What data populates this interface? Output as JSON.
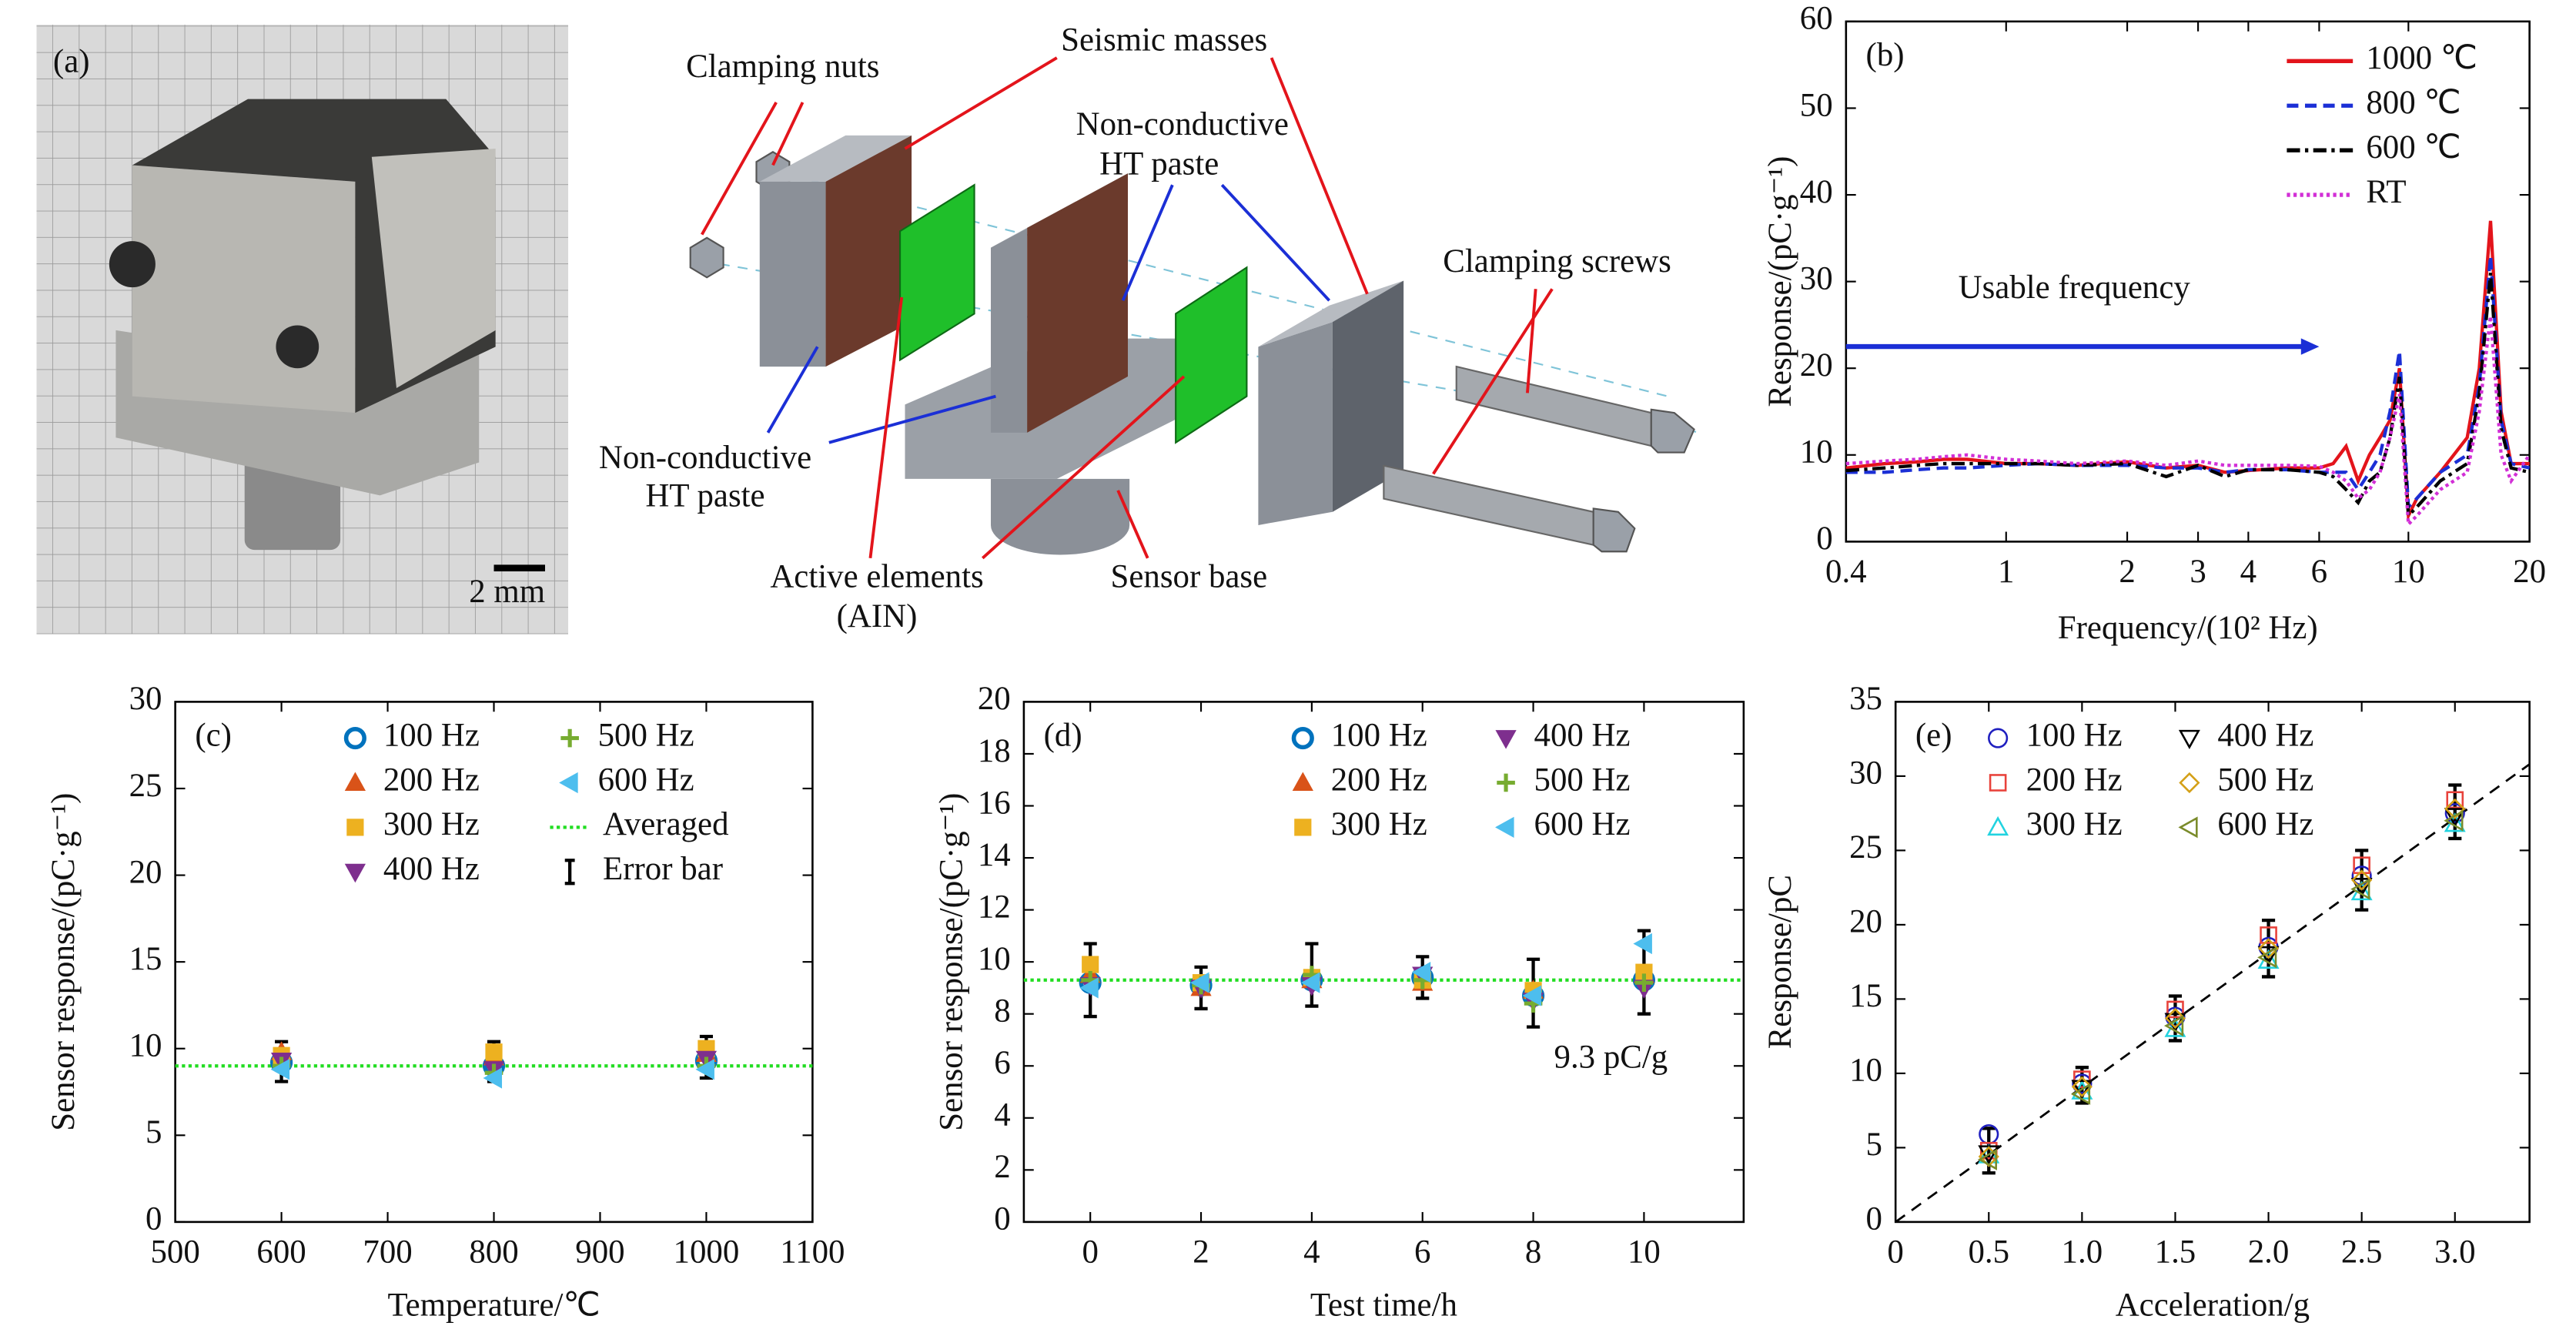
{
  "photo": {
    "label": "(a)",
    "scale_bar": "2 mm"
  },
  "diagram": {
    "clamping_nuts": "Clamping nuts",
    "seismic_masses": "Seismic masses",
    "paste_top": [
      "Non-conductive",
      "HT paste"
    ],
    "clamping_screws": "Clamping screws",
    "paste_left": [
      "Non-conductive",
      "HT paste"
    ],
    "active_elements": [
      "Active elements",
      "(AIN)"
    ],
    "sensor_base": "Sensor base"
  },
  "chart_data": [
    {
      "type": "line",
      "panel_label": "(b)",
      "xlabel": "Frequency/(10² Hz)",
      "ylabel": "Response/(pC·g⁻¹)",
      "xscale": "log",
      "xlim": [
        0.4,
        20
      ],
      "xticks": [
        0.4,
        1,
        2,
        3,
        4,
        6,
        10,
        20
      ],
      "ylim": [
        0,
        60
      ],
      "yticks": [
        0,
        10,
        20,
        30,
        40,
        50,
        60
      ],
      "legend": "upper right",
      "legend_ncol": 1,
      "x": [
        0.4,
        0.5,
        0.6,
        0.7,
        0.8,
        1,
        1.2,
        1.5,
        2,
        2.5,
        3,
        3.5,
        4,
        5,
        6,
        6.5,
        7,
        7.5,
        8,
        8.5,
        9,
        9.5,
        10,
        10.5,
        12,
        14,
        15,
        16,
        17,
        18,
        20
      ],
      "series": [
        {
          "name": "1000 ℃",
          "color": "#e3141b",
          "dash": "solid",
          "values": [
            8.5,
            9,
            9.2,
            9.5,
            9.5,
            9,
            9,
            8.8,
            9.2,
            8.5,
            8.8,
            8,
            8.2,
            8.5,
            8.5,
            9,
            11,
            7,
            10,
            12,
            14,
            20,
            3,
            5,
            8,
            12,
            20,
            37,
            15,
            9,
            9
          ]
        },
        {
          "name": "800 ℃",
          "color": "#1b2fd6",
          "dash": "dashed",
          "values": [
            8,
            8,
            8.3,
            8.5,
            8.5,
            8.8,
            9,
            8.8,
            8.8,
            8.5,
            8.5,
            8,
            8.3,
            8.3,
            8,
            8,
            8,
            6,
            8,
            10,
            15,
            22,
            4,
            5,
            8,
            10,
            18,
            33,
            14,
            9,
            8.5
          ]
        },
        {
          "name": "600 ℃",
          "color": "#000000",
          "dash": "dashdot",
          "values": [
            8.2,
            8.5,
            8.8,
            9,
            9,
            9,
            9,
            8.8,
            9,
            7.5,
            8.8,
            7.5,
            8.3,
            8.3,
            8,
            7.5,
            6,
            4.5,
            7,
            8,
            12,
            19,
            3,
            4,
            7,
            9,
            17,
            31,
            13,
            8.5,
            8
          ]
        },
        {
          "name": "RT",
          "color": "#d22fd6",
          "dash": "dotted",
          "values": [
            9,
            9.3,
            9.5,
            9.8,
            10,
            9.5,
            9.3,
            9,
            9.3,
            8.8,
            9.3,
            8.8,
            8.8,
            8.8,
            8.7,
            8,
            7,
            5,
            6,
            8,
            12,
            17,
            2,
            3,
            6,
            8,
            15,
            26,
            10,
            7,
            10
          ]
        }
      ],
      "arrow": {
        "text": "Usable frequency",
        "x": [
          0.4,
          6
        ],
        "y": 22.5,
        "color": "#1b2fd6"
      }
    },
    {
      "type": "scatter",
      "panel_label": "(c)",
      "xlabel": "Temperature/℃",
      "ylabel": "Sensor response/(pC·g⁻¹)",
      "xlim": [
        500,
        1100
      ],
      "xticks": [
        500,
        600,
        700,
        800,
        900,
        1000,
        1100
      ],
      "ylim": [
        0,
        30
      ],
      "yticks": [
        0,
        5,
        10,
        15,
        20,
        25,
        30
      ],
      "legend": "upper center",
      "legend_ncol": 2,
      "markers_filled": true,
      "x": [
        600,
        800,
        1000
      ],
      "series": [
        {
          "name": "100 Hz",
          "color": "#0072bd",
          "marker": "circle",
          "values": [
            9.2,
            9.0,
            9.3
          ]
        },
        {
          "name": "200 Hz",
          "color": "#d95319",
          "marker": "triangle-up",
          "values": [
            9.8,
            9.5,
            9.7
          ]
        },
        {
          "name": "300 Hz",
          "color": "#edb120",
          "marker": "square",
          "values": [
            9.6,
            9.8,
            10.0
          ]
        },
        {
          "name": "400 Hz",
          "color": "#7e2f8e",
          "marker": "triangle-down",
          "values": [
            9.3,
            8.8,
            9.4
          ]
        },
        {
          "name": "500 Hz",
          "color": "#77ac30",
          "marker": "plus",
          "values": [
            9.0,
            8.6,
            9.0
          ]
        },
        {
          "name": "600 Hz",
          "color": "#4dbeee",
          "marker": "triangle-left",
          "values": [
            8.8,
            8.3,
            8.8
          ]
        }
      ],
      "average": {
        "name": "Averaged",
        "value": 9,
        "color": "#22dd22"
      },
      "error_bar": {
        "name": "Error bar",
        "color": "#000000",
        "values": [
          9.25,
          9.25,
          9.5
        ],
        "errors": [
          1.15,
          1.15,
          1.2
        ]
      }
    },
    {
      "type": "scatter",
      "panel_label": "(d)",
      "xlabel": "Test time/h",
      "ylabel": "Sensor response/(pC·g⁻¹)",
      "xlim": [
        -1.2,
        11.8
      ],
      "xticks": [
        0,
        2,
        4,
        6,
        8,
        10
      ],
      "ylim": [
        0,
        20
      ],
      "yticks": [
        0,
        2,
        4,
        6,
        8,
        10,
        12,
        14,
        16,
        18,
        20
      ],
      "legend": "upper center",
      "legend_ncol": 2,
      "markers_filled": true,
      "annotation": "9.3 pC/g",
      "x": [
        0,
        2,
        4,
        6,
        8,
        10
      ],
      "series": [
        {
          "name": "100 Hz",
          "color": "#0072bd",
          "marker": "circle",
          "values": [
            9.2,
            9.1,
            9.3,
            9.4,
            8.7,
            9.3
          ]
        },
        {
          "name": "200 Hz",
          "color": "#d95319",
          "marker": "triangle-up",
          "values": [
            9.5,
            9.0,
            9.3,
            9.2,
            8.9,
            9.5
          ]
        },
        {
          "name": "300 Hz",
          "color": "#edb120",
          "marker": "square",
          "values": [
            9.9,
            9.2,
            9.4,
            9.3,
            8.9,
            9.6
          ]
        },
        {
          "name": "400 Hz",
          "color": "#7e2f8e",
          "marker": "triangle-down",
          "values": [
            9.1,
            9.0,
            9.1,
            9.5,
            8.5,
            9.0
          ]
        },
        {
          "name": "500 Hz",
          "color": "#77ac30",
          "marker": "plus",
          "values": [
            9.3,
            9.1,
            9.5,
            9.3,
            8.4,
            9.2
          ]
        },
        {
          "name": "600 Hz",
          "color": "#4dbeee",
          "marker": "triangle-left",
          "values": [
            9.0,
            9.2,
            9.2,
            9.6,
            8.7,
            10.7
          ]
        }
      ],
      "average": {
        "value": 9.3,
        "color": "#22dd22"
      },
      "error_bar": {
        "color": "#000000",
        "values": [
          9.3,
          9.0,
          9.5,
          9.4,
          8.8,
          9.6
        ],
        "errors": [
          1.4,
          0.8,
          1.2,
          0.8,
          1.3,
          1.6
        ]
      }
    },
    {
      "type": "scatter",
      "panel_label": "(e)",
      "xlabel": "Acceleration/g",
      "ylabel": "Response/pC",
      "xlim": [
        0,
        3.4
      ],
      "xticks": [
        0,
        0.5,
        {
          "value": 1,
          "label": "1.0"
        },
        1.5,
        {
          "value": 2,
          "label": "2.0"
        },
        2.5,
        {
          "value": 3,
          "label": "3.0"
        }
      ],
      "ylim": [
        0,
        35
      ],
      "yticks": [
        0,
        5,
        10,
        15,
        20,
        25,
        30,
        35
      ],
      "legend": "upper left",
      "legend_ncol": 2,
      "markers_filled": false,
      "x": [
        0.5,
        1.0,
        1.5,
        2.0,
        2.5,
        3.0
      ],
      "series": [
        {
          "name": "100 Hz",
          "color": "#1f1fbf",
          "marker": "circle",
          "values": [
            5.9,
            9.3,
            13.8,
            18.5,
            23.3,
            27.5
          ]
        },
        {
          "name": "200 Hz",
          "color": "#e8423b",
          "marker": "square",
          "values": [
            4.8,
            9.6,
            14.3,
            19.3,
            24.0,
            28.4
          ]
        },
        {
          "name": "300 Hz",
          "color": "#22d3e0",
          "marker": "triangle-up",
          "values": [
            4.5,
            8.8,
            13.0,
            17.6,
            22.2,
            26.8
          ]
        },
        {
          "name": "400 Hz",
          "color": "#000000",
          "marker": "triangle-down",
          "values": [
            4.6,
            9.0,
            13.5,
            18.0,
            22.6,
            27.3
          ]
        },
        {
          "name": "500 Hz",
          "color": "#d4a017",
          "marker": "diamond",
          "values": [
            4.4,
            9.1,
            13.7,
            18.4,
            23.0,
            27.8
          ]
        },
        {
          "name": "600 Hz",
          "color": "#7a8b2a",
          "marker": "triangle-left",
          "values": [
            4.2,
            8.6,
            13.2,
            17.8,
            22.4,
            27.0
          ]
        }
      ],
      "error_bar": {
        "color": "#000000",
        "values": [
          4.8,
          9.2,
          13.7,
          18.4,
          23.0,
          27.6
        ],
        "errors": [
          1.5,
          1.2,
          1.5,
          1.9,
          2.0,
          1.8
        ]
      },
      "fit": {
        "color": "#000000",
        "x": [
          0,
          3.4
        ],
        "values": [
          0,
          30.8
        ]
      }
    }
  ]
}
